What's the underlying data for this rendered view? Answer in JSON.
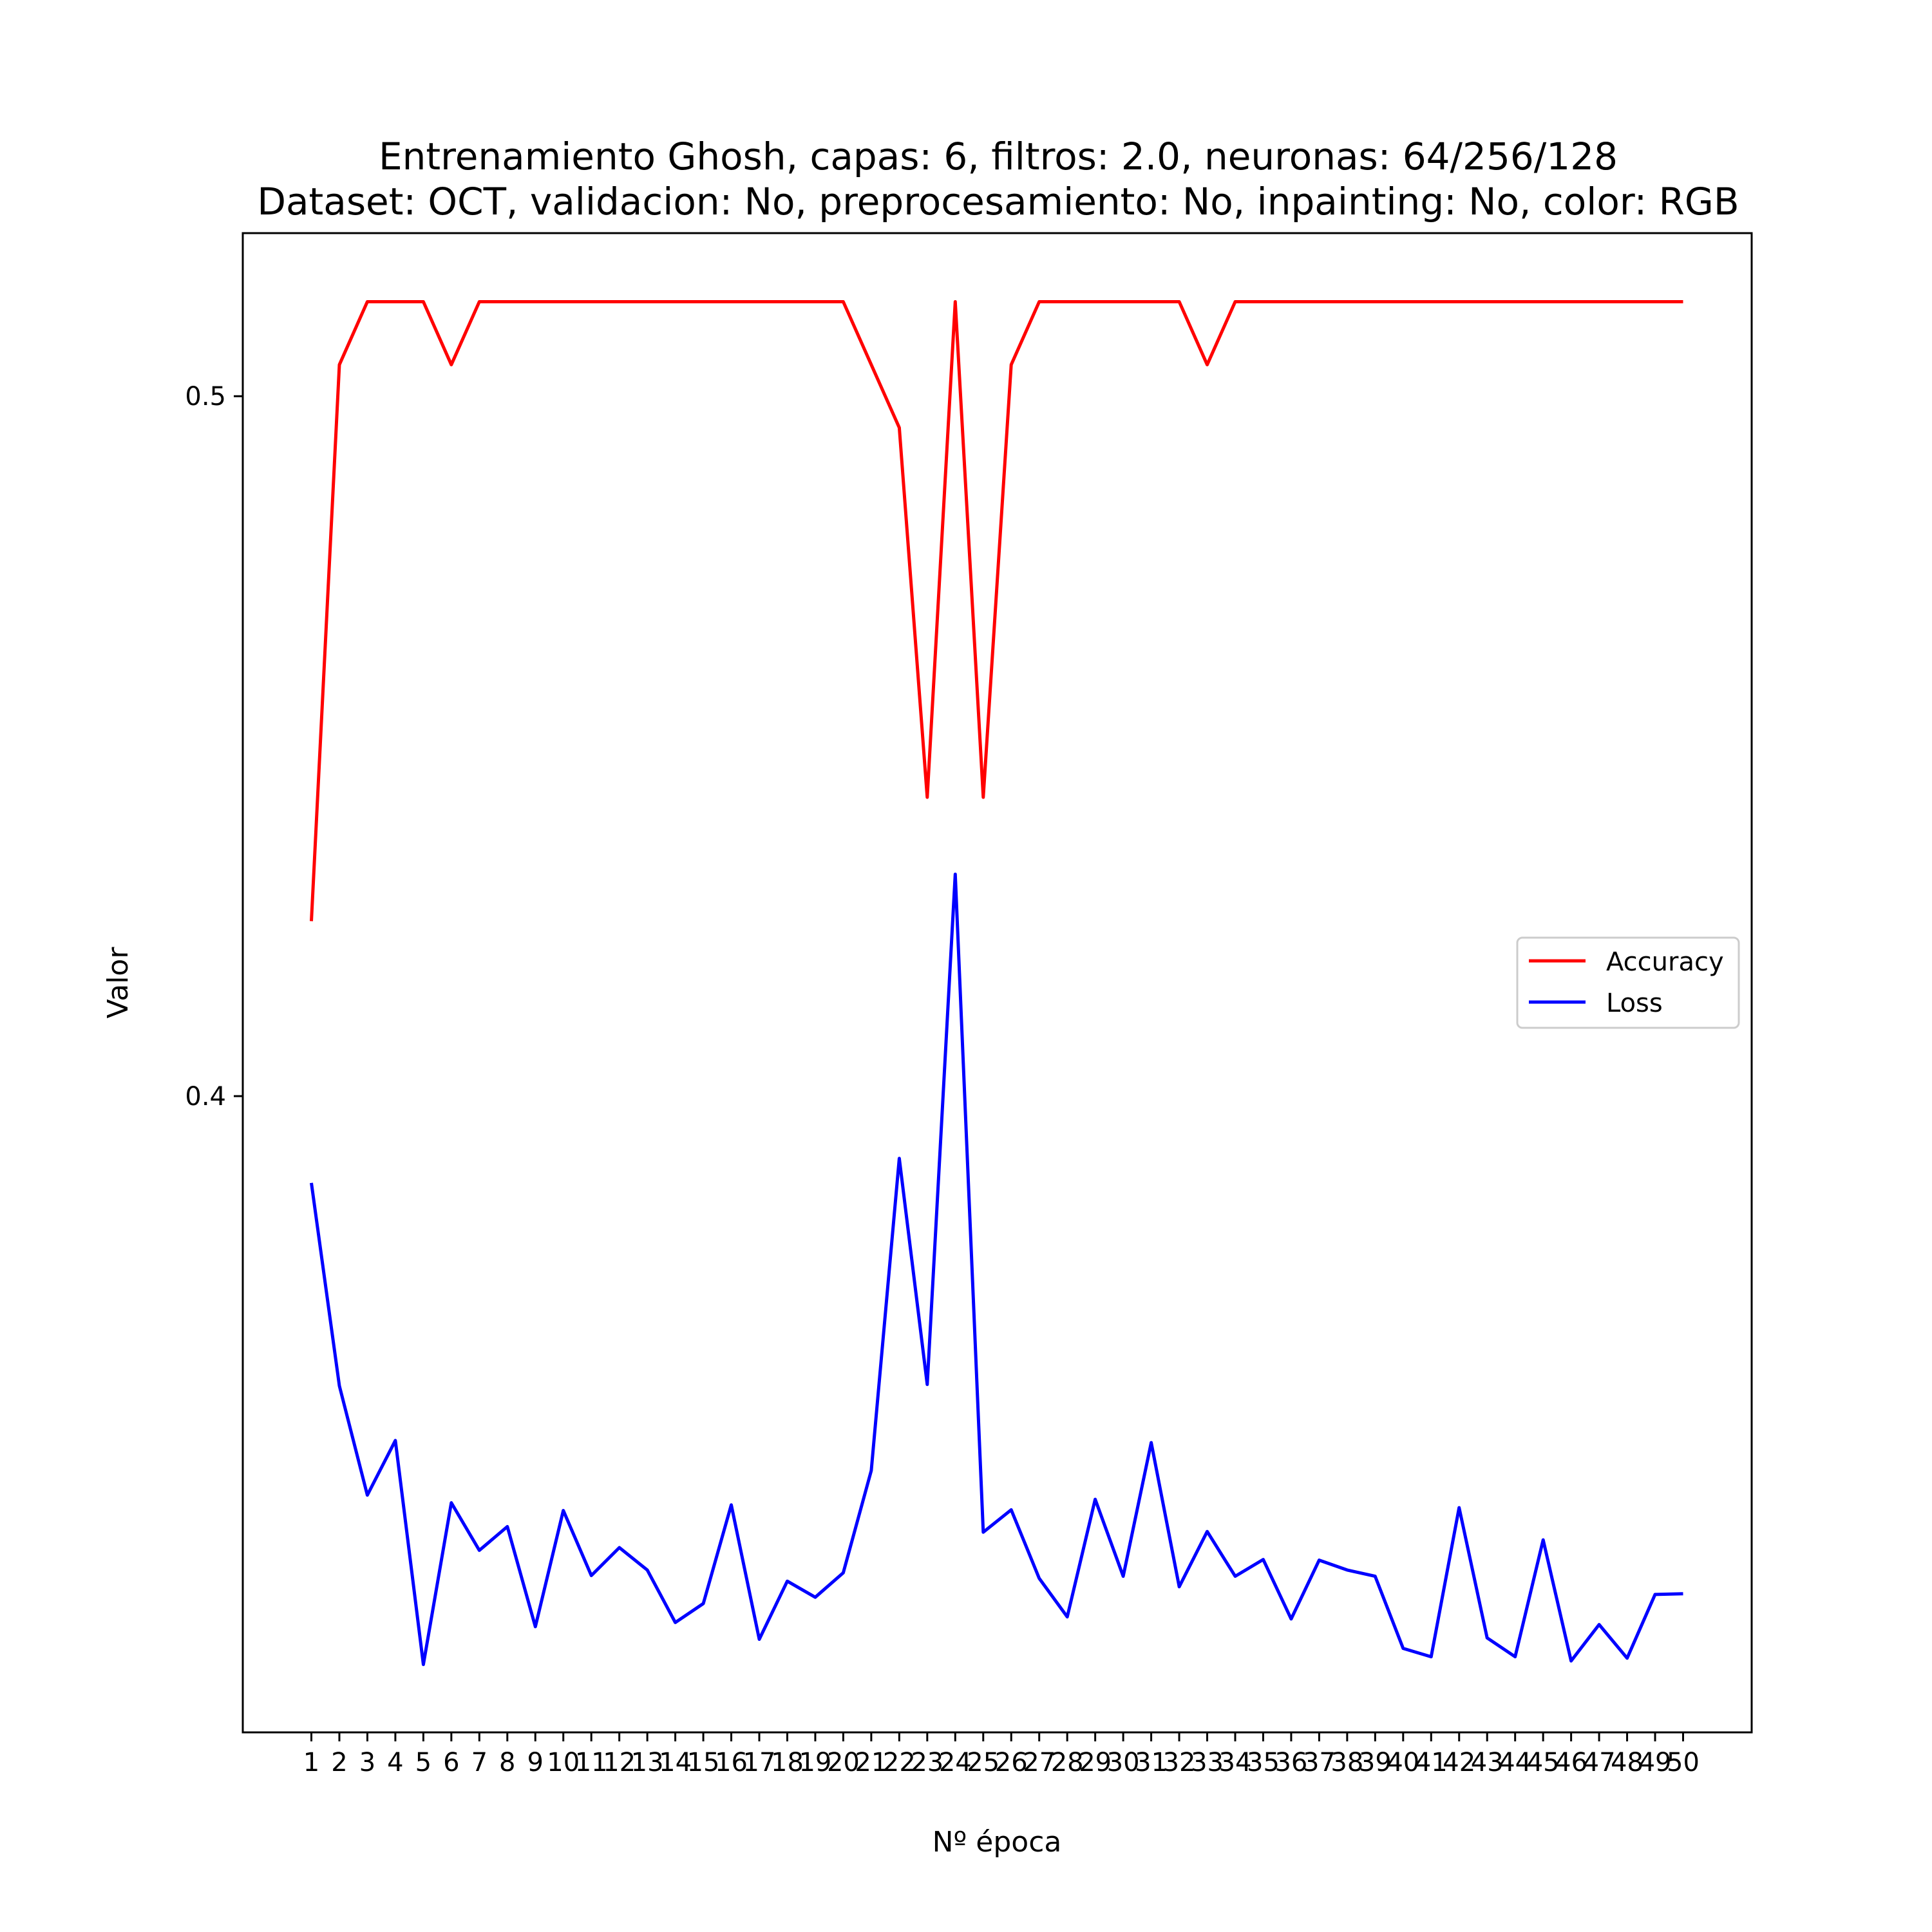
{
  "chart_data": {
    "type": "line",
    "title": "Entrenamiento Ghosh, capas: 6, filtros: 2.0, neuronas: 64/256/128",
    "subtitle": "Dataset: OCT, validacion: No, preprocesamiento: No, inpainting: No, color: RGB",
    "xlabel": "Nº época",
    "ylabel": "Valor",
    "x": [
      1,
      2,
      3,
      4,
      5,
      6,
      7,
      8,
      9,
      10,
      11,
      12,
      13,
      14,
      15,
      16,
      17,
      18,
      19,
      20,
      21,
      22,
      23,
      24,
      25,
      26,
      27,
      28,
      29,
      30,
      31,
      32,
      33,
      34,
      35,
      36,
      37,
      38,
      39,
      40,
      41,
      42,
      43,
      44,
      45,
      46,
      47,
      48,
      49,
      50
    ],
    "xlim": [
      -1.45,
      52.45
    ],
    "ylim": [
      0.3091,
      0.5233
    ],
    "yticks": [
      0.4,
      0.5
    ],
    "grid": false,
    "legend": "center-right",
    "series": [
      {
        "name": "Accuracy",
        "color": "#ff0000",
        "values": [
          0.425,
          0.5045,
          0.5135,
          0.5135,
          0.5135,
          0.5045,
          0.5135,
          0.5135,
          0.5135,
          0.5135,
          0.5135,
          0.5135,
          0.5135,
          0.5135,
          0.5135,
          0.5135,
          0.5135,
          0.5135,
          0.5135,
          0.5135,
          0.5045,
          0.4955,
          0.4427,
          0.5135,
          0.4427,
          0.5045,
          0.5135,
          0.5135,
          0.5135,
          0.5135,
          0.5135,
          0.5135,
          0.5045,
          0.5135,
          0.5135,
          0.5135,
          0.5135,
          0.5135,
          0.5135,
          0.5135,
          0.5135,
          0.5135,
          0.5135,
          0.5135,
          0.5135,
          0.5135,
          0.5135,
          0.5135,
          0.5135,
          0.5135
        ]
      },
      {
        "name": "Loss",
        "color": "#0000ff",
        "values": [
          0.3876,
          0.3586,
          0.343,
          0.3508,
          0.3188,
          0.3419,
          0.3351,
          0.3385,
          0.3242,
          0.3408,
          0.3315,
          0.3355,
          0.3323,
          0.3248,
          0.3275,
          0.3416,
          0.3224,
          0.3307,
          0.3284,
          0.3319,
          0.3465,
          0.3911,
          0.3588,
          0.4317,
          0.3377,
          0.3409,
          0.3311,
          0.3256,
          0.3424,
          0.3314,
          0.3505,
          0.3299,
          0.3378,
          0.3314,
          0.3338,
          0.3253,
          0.3337,
          0.3323,
          0.3314,
          0.3211,
          0.3199,
          0.3412,
          0.3226,
          0.3199,
          0.3366,
          0.3193,
          0.3245,
          0.3197,
          0.3288,
          0.3289
        ]
      }
    ]
  }
}
